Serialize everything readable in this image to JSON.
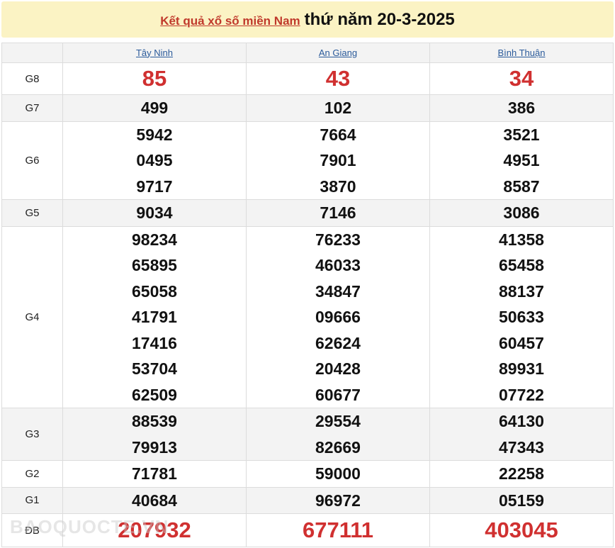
{
  "title": {
    "link": "Kết quả xổ số miền Nam",
    "date": "thứ năm 20-3-2025"
  },
  "provinces": [
    "Tây Ninh",
    "An Giang",
    "Bình Thuận"
  ],
  "rows": [
    {
      "label": "G8",
      "values": [
        [
          "85"
        ],
        [
          "43"
        ],
        [
          "34"
        ]
      ]
    },
    {
      "label": "G7",
      "values": [
        [
          "499"
        ],
        [
          "102"
        ],
        [
          "386"
        ]
      ]
    },
    {
      "label": "G6",
      "values": [
        [
          "5942",
          "0495",
          "9717"
        ],
        [
          "7664",
          "7901",
          "3870"
        ],
        [
          "3521",
          "4951",
          "8587"
        ]
      ]
    },
    {
      "label": "G5",
      "values": [
        [
          "9034"
        ],
        [
          "7146"
        ],
        [
          "3086"
        ]
      ]
    },
    {
      "label": "G4",
      "values": [
        [
          "98234",
          "65895",
          "65058",
          "41791",
          "17416",
          "53704",
          "62509"
        ],
        [
          "76233",
          "46033",
          "34847",
          "09666",
          "62624",
          "20428",
          "60677"
        ],
        [
          "41358",
          "65458",
          "88137",
          "50633",
          "60457",
          "89931",
          "07722"
        ]
      ]
    },
    {
      "label": "G3",
      "values": [
        [
          "88539",
          "79913"
        ],
        [
          "29554",
          "82669"
        ],
        [
          "64130",
          "47343"
        ]
      ]
    },
    {
      "label": "G2",
      "values": [
        [
          "71781"
        ],
        [
          "59000"
        ],
        [
          "22258"
        ]
      ]
    },
    {
      "label": "G1",
      "values": [
        [
          "40684"
        ],
        [
          "96972"
        ],
        [
          "05159"
        ]
      ]
    },
    {
      "label": "ĐB",
      "values": [
        [
          "207932"
        ],
        [
          "677111"
        ],
        [
          "403045"
        ]
      ]
    }
  ],
  "watermark": "BAOQUOCTE.VN",
  "colors": {
    "accent": "#d03030",
    "header_bg": "#fbf3c4",
    "link": "#2a5a9a"
  }
}
